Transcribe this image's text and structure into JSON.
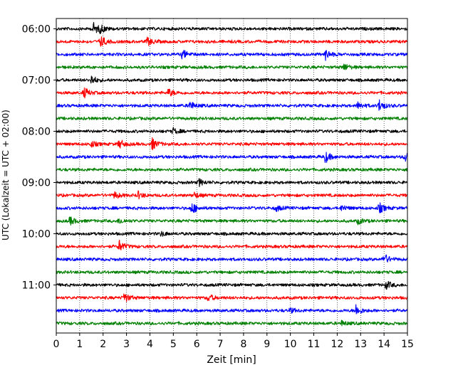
{
  "chart_data": {
    "type": "line",
    "title": "",
    "xlabel": "Zeit  [min]",
    "ylabel": "UTC (Lokalzeit = UTC + 02:00)",
    "xlim": [
      0,
      15
    ],
    "x_ticks": [
      "0",
      "1",
      "2",
      "3",
      "4",
      "5",
      "6",
      "7",
      "8",
      "9",
      "10",
      "11",
      "12",
      "13",
      "14",
      "15"
    ],
    "y_ticks": [
      "06:00",
      "07:00",
      "08:00",
      "09:00",
      "10:00",
      "11:00"
    ],
    "grid": "vertical dotted lines at each minute",
    "line_minutes": 15,
    "color_cycle": [
      "#000000",
      "#ff0000",
      "#0000ff",
      "#008000"
    ],
    "traces": [
      {
        "start": "06:00",
        "events": [
          [
            1.6,
            1.0
          ],
          [
            1.9,
            0.6
          ]
        ]
      },
      {
        "start": "06:15",
        "events": [
          [
            1.9,
            1.0
          ],
          [
            3.9,
            0.7
          ]
        ]
      },
      {
        "start": "06:30",
        "events": [
          [
            5.4,
            0.8
          ],
          [
            11.5,
            0.9
          ]
        ]
      },
      {
        "start": "06:45",
        "events": [
          [
            12.3,
            0.6
          ]
        ]
      },
      {
        "start": "07:00",
        "events": [
          [
            1.5,
            0.8
          ]
        ]
      },
      {
        "start": "07:15",
        "events": [
          [
            1.2,
            0.9
          ],
          [
            4.8,
            0.7
          ]
        ]
      },
      {
        "start": "07:30",
        "events": [
          [
            5.7,
            0.8
          ],
          [
            12.9,
            0.6
          ],
          [
            13.8,
            1.0
          ]
        ]
      },
      {
        "start": "07:45",
        "events": []
      },
      {
        "start": "08:00",
        "events": [
          [
            5.0,
            0.5
          ]
        ]
      },
      {
        "start": "08:15",
        "events": [
          [
            1.5,
            0.5
          ],
          [
            2.7,
            0.8
          ],
          [
            4.1,
            1.0
          ]
        ]
      },
      {
        "start": "08:30",
        "events": [
          [
            11.5,
            1.0
          ],
          [
            14.9,
            0.8
          ]
        ]
      },
      {
        "start": "08:45",
        "events": []
      },
      {
        "start": "09:00",
        "events": [
          [
            6.1,
            0.6
          ]
        ]
      },
      {
        "start": "09:15",
        "events": [
          [
            2.5,
            0.6
          ],
          [
            3.5,
            0.6
          ],
          [
            5.9,
            0.5
          ]
        ]
      },
      {
        "start": "09:30",
        "events": [
          [
            5.8,
            1.0
          ],
          [
            13.8,
            0.9
          ],
          [
            9.4,
            0.5
          ],
          [
            12.2,
            0.5
          ]
        ]
      },
      {
        "start": "09:45",
        "events": [
          [
            0.6,
            0.7
          ],
          [
            2.7,
            0.5
          ],
          [
            12.9,
            0.5
          ]
        ]
      },
      {
        "start": "10:00",
        "events": [
          [
            4.5,
            0.4
          ]
        ]
      },
      {
        "start": "10:15",
        "events": [
          [
            2.7,
            1.0
          ]
        ]
      },
      {
        "start": "10:30",
        "events": [
          [
            14.0,
            1.0
          ]
        ]
      },
      {
        "start": "10:45",
        "events": []
      },
      {
        "start": "11:00",
        "events": [
          [
            14.1,
            0.7
          ]
        ]
      },
      {
        "start": "11:15",
        "events": [
          [
            2.9,
            0.9
          ],
          [
            6.5,
            0.6
          ]
        ]
      },
      {
        "start": "11:30",
        "events": [
          [
            12.8,
            1.0
          ],
          [
            10.0,
            0.4
          ]
        ]
      },
      {
        "start": "11:45",
        "events": [
          [
            12.2,
            0.4
          ]
        ]
      }
    ]
  }
}
